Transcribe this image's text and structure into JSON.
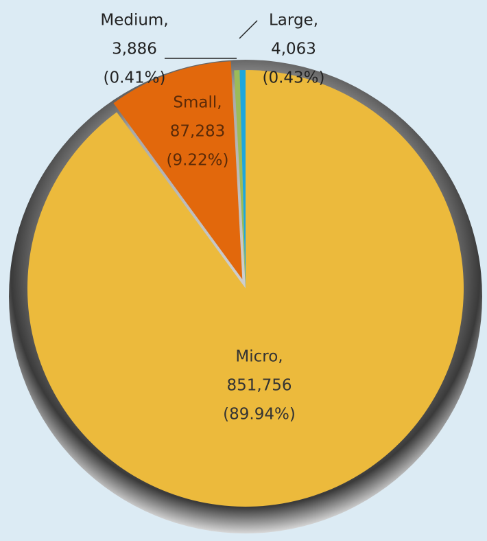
{
  "chart_data": {
    "type": "pie",
    "categories": [
      "Micro,",
      "Small,",
      "Medium,",
      "Large,"
    ],
    "values": [
      851756,
      87283,
      3886,
      4063
    ],
    "value_labels": [
      "851,756",
      "87,283",
      "3,886",
      "4,063"
    ],
    "percent_labels": [
      "(89.94%)",
      "(9.22%)",
      "(0.41%)",
      "(0.43%)"
    ],
    "colors": [
      "#ecba3c",
      "#e2680c",
      "#9bbb59",
      "#1ea7dc"
    ]
  }
}
